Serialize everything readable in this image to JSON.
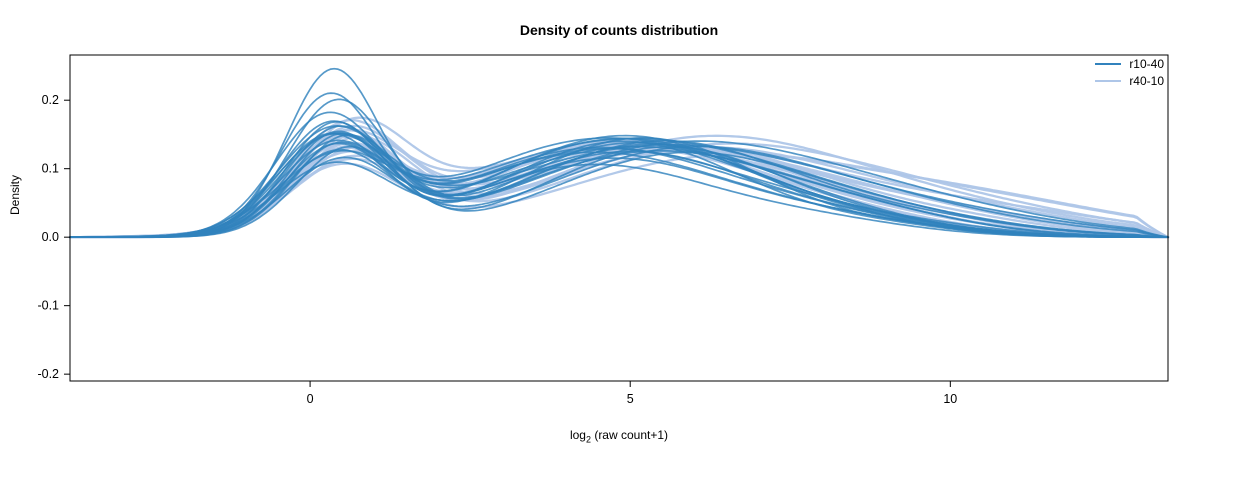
{
  "chart_data": {
    "type": "line",
    "title": "Density of counts distribution",
    "ylabel": "Density",
    "xlabel": "log2 (raw count+1)",
    "xlabel_parts": {
      "pre": "log",
      "sub": "2",
      "post": " (raw count+1)"
    },
    "xlim": [
      -3.75,
      13.4
    ],
    "ylim": [
      -0.21,
      0.266
    ],
    "xticks": {
      "values": [
        0,
        5,
        10
      ],
      "labels": [
        "0",
        "5",
        "10"
      ]
    },
    "yticks": {
      "values": [
        -0.2,
        -0.1,
        0.0,
        0.1,
        0.2
      ],
      "labels": [
        "-0.2",
        "-0.1",
        "0.0",
        "0.1",
        "0.2"
      ]
    },
    "legend": [
      {
        "label": "r10-40",
        "color": "#3182bd"
      },
      {
        "label": "r40-10",
        "color": "#aec6e8"
      }
    ],
    "series": [
      {
        "name": "r10-40",
        "color": "#3182bd",
        "line_width": 1.7,
        "opacity": 0.82,
        "curve_model": "sum_of_gaussians [h1,m1,s1,h2,m2,s2,h3,m3,s3]",
        "curves": [
          [
            0.235,
            0.35,
            0.72,
            0.105,
            4.4,
            1.9,
            0.02,
            8.0,
            1.5
          ],
          [
            0.2,
            0.3,
            0.75,
            0.115,
            4.7,
            2.0,
            0.018,
            8.5,
            1.4
          ],
          [
            0.192,
            0.42,
            0.78,
            0.125,
            5.0,
            2.0,
            0.015,
            8.8,
            1.3
          ],
          [
            0.165,
            0.25,
            0.8,
            0.13,
            4.5,
            2.1,
            0.02,
            8.2,
            1.5
          ],
          [
            0.16,
            0.38,
            0.76,
            0.14,
            4.9,
            1.9,
            0.012,
            9.0,
            1.2
          ],
          [
            0.155,
            0.45,
            0.82,
            0.135,
            5.3,
            2.0,
            0.015,
            8.6,
            1.4
          ],
          [
            0.15,
            0.3,
            0.78,
            0.128,
            4.6,
            2.2,
            0.02,
            8.4,
            1.6
          ],
          [
            0.148,
            0.5,
            0.8,
            0.132,
            5.6,
            1.9,
            0.01,
            9.2,
            1.2
          ],
          [
            0.145,
            0.33,
            0.85,
            0.12,
            4.3,
            2.0,
            0.025,
            7.8,
            1.8
          ],
          [
            0.143,
            0.4,
            0.75,
            0.138,
            5.1,
            2.1,
            0.013,
            9.5,
            1.3
          ],
          [
            0.14,
            0.28,
            0.8,
            0.142,
            4.8,
            2.0,
            0.02,
            8.0,
            1.5
          ],
          [
            0.138,
            0.55,
            0.78,
            0.125,
            5.4,
            2.2,
            0.018,
            9.0,
            1.5
          ],
          [
            0.135,
            0.35,
            0.82,
            0.13,
            5.0,
            2.3,
            0.022,
            8.7,
            1.7
          ],
          [
            0.132,
            0.45,
            0.76,
            0.145,
            5.2,
            1.9,
            0.01,
            9.8,
            1.2
          ],
          [
            0.13,
            0.3,
            0.85,
            0.135,
            4.4,
            2.1,
            0.03,
            7.5,
            2.0
          ],
          [
            0.128,
            0.6,
            0.8,
            0.12,
            5.8,
            2.0,
            0.025,
            9.3,
            1.8
          ],
          [
            0.125,
            0.38,
            0.78,
            0.148,
            4.9,
            2.0,
            0.015,
            8.9,
            1.4
          ],
          [
            0.12,
            0.42,
            0.83,
            0.14,
            5.5,
            2.1,
            0.02,
            9.6,
            1.6
          ],
          [
            0.115,
            0.33,
            0.8,
            0.132,
            4.7,
            2.4,
            0.035,
            8.1,
            2.2
          ],
          [
            0.11,
            0.5,
            0.85,
            0.128,
            5.9,
            2.2,
            0.03,
            9.9,
            2.0
          ],
          [
            0.105,
            0.4,
            0.9,
            0.118,
            5.1,
            2.5,
            0.04,
            8.5,
            2.4
          ],
          [
            0.1,
            0.36,
            0.88,
            0.124,
            5.6,
            2.3,
            0.045,
            9.1,
            2.3
          ]
        ]
      },
      {
        "name": "r40-10",
        "color": "#aec6e8",
        "line_width": 2.3,
        "opacity": 0.95,
        "curve_model": "sum_of_gaussians [h1,m1,s1,h2,m2,s2,h3,m3,s3]",
        "curves": [
          [
            0.15,
            0.55,
            0.85,
            0.13,
            4.8,
            2.2,
            0.02,
            8.3,
            1.6
          ],
          [
            0.145,
            0.6,
            0.88,
            0.125,
            5.2,
            2.3,
            0.025,
            8.8,
            1.8
          ],
          [
            0.142,
            0.48,
            0.82,
            0.135,
            5.5,
            2.1,
            0.018,
            9.2,
            1.5
          ],
          [
            0.14,
            0.65,
            0.85,
            0.128,
            4.6,
            2.4,
            0.03,
            8.0,
            2.0
          ],
          [
            0.138,
            0.52,
            0.8,
            0.14,
            5.0,
            2.2,
            0.02,
            9.0,
            1.7
          ],
          [
            0.135,
            0.7,
            0.9,
            0.122,
            5.7,
            2.3,
            0.028,
            9.5,
            1.9
          ],
          [
            0.132,
            0.45,
            0.85,
            0.138,
            4.9,
            2.1,
            0.022,
            8.6,
            1.6
          ],
          [
            0.13,
            0.58,
            0.82,
            0.13,
            5.4,
            2.4,
            0.03,
            9.8,
            2.0
          ],
          [
            0.128,
            0.5,
            0.88,
            0.126,
            4.5,
            2.3,
            0.035,
            7.9,
            2.1
          ],
          [
            0.125,
            0.62,
            0.85,
            0.134,
            5.8,
            2.2,
            0.02,
            10.0,
            1.6
          ],
          [
            0.122,
            0.55,
            0.8,
            0.142,
            5.1,
            2.0,
            0.015,
            9.4,
            1.4
          ],
          [
            0.12,
            0.68,
            0.9,
            0.128,
            6.0,
            2.4,
            0.03,
            10.2,
            2.0
          ],
          [
            0.118,
            0.48,
            0.85,
            0.136,
            5.3,
            2.2,
            0.025,
            9.1,
            1.8
          ],
          [
            0.115,
            0.58,
            0.88,
            0.13,
            5.6,
            2.5,
            0.035,
            10.5,
            2.2
          ],
          [
            0.112,
            0.52,
            0.82,
            0.138,
            4.8,
            2.3,
            0.028,
            8.9,
            1.9
          ],
          [
            0.11,
            0.65,
            0.92,
            0.125,
            6.2,
            2.4,
            0.04,
            10.0,
            2.3
          ],
          [
            0.108,
            0.45,
            0.85,
            0.132,
            5.0,
            2.6,
            0.03,
            9.6,
            2.1
          ],
          [
            0.105,
            0.6,
            0.9,
            0.128,
            5.9,
            2.3,
            0.045,
            9.3,
            2.5
          ],
          [
            0.102,
            0.55,
            0.95,
            0.12,
            5.5,
            2.7,
            0.05,
            10.3,
            2.4
          ],
          [
            0.1,
            0.5,
            0.92,
            0.115,
            6.4,
            2.5,
            0.04,
            10.8,
            2.2
          ]
        ]
      }
    ]
  }
}
